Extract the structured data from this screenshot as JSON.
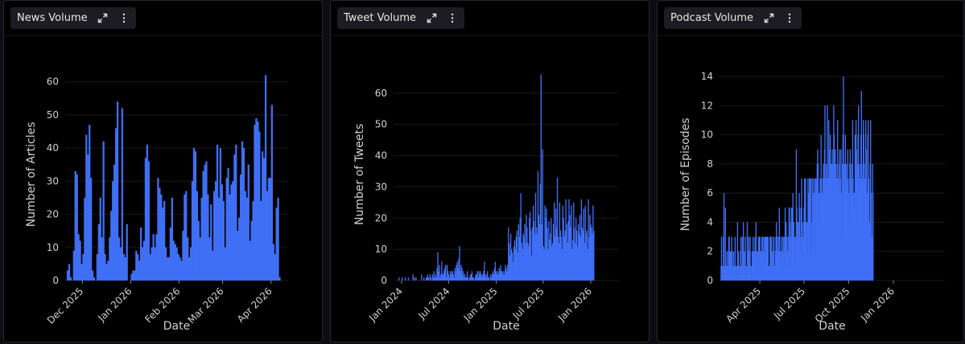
{
  "panels": [
    {
      "title": "News Volume",
      "expand_icon": "expand-icon",
      "menu_icon": "kebab-menu-icon"
    },
    {
      "title": "Tweet Volume",
      "expand_icon": "expand-icon",
      "menu_icon": "kebab-menu-icon"
    },
    {
      "title": "Podcast Volume",
      "expand_icon": "expand-icon",
      "menu_icon": "kebab-menu-icon"
    }
  ],
  "colors": {
    "bar": "#3f6ff5",
    "background": "#000000",
    "grid": "#1a1a1f",
    "text": "#d0d0d0"
  },
  "chart_data": [
    {
      "type": "bar",
      "xlabel": "Date",
      "ylabel": "Number of Articles",
      "xlim": [
        "2025-11-20",
        "2026-04-12"
      ],
      "ylim": [
        0,
        66
      ],
      "yticks": [
        0,
        10,
        20,
        30,
        40,
        50,
        60
      ],
      "xticks": [
        {
          "date": "2025-12-01",
          "label": "Dec 2025"
        },
        {
          "date": "2026-01-01",
          "label": "Jan 2026"
        },
        {
          "date": "2026-02-01",
          "label": "Feb 2026"
        },
        {
          "date": "2026-03-01",
          "label": "Mar 2026"
        },
        {
          "date": "2026-04-01",
          "label": "Apr 2026"
        }
      ],
      "x_start": "2025-11-21",
      "bin_days": 1,
      "values": [
        3,
        5,
        1,
        0,
        9,
        33,
        32,
        14,
        12,
        5,
        8,
        25,
        44,
        38,
        47,
        31,
        3,
        1,
        0,
        8,
        17,
        25,
        13,
        42,
        8,
        5,
        6,
        13,
        21,
        30,
        35,
        46,
        54,
        13,
        10,
        52,
        8,
        7,
        17,
        0,
        0,
        2,
        3,
        3,
        9,
        8,
        6,
        16,
        10,
        12,
        37,
        41,
        36,
        8,
        10,
        14,
        10,
        14,
        31,
        28,
        26,
        22,
        24,
        10,
        7,
        7,
        16,
        25,
        12,
        11,
        10,
        8,
        7,
        6,
        15,
        26,
        27,
        13,
        7,
        10,
        30,
        40,
        39,
        27,
        18,
        13,
        25,
        33,
        35,
        36,
        26,
        13,
        23,
        9,
        27,
        30,
        41,
        25,
        40,
        29,
        24,
        10,
        31,
        34,
        26,
        29,
        30,
        38,
        41,
        15,
        19,
        32,
        42,
        40,
        27,
        25,
        35,
        12,
        18,
        24,
        47,
        49,
        48,
        45,
        24,
        39,
        37,
        62,
        27,
        31,
        31,
        53,
        11,
        8,
        22,
        25,
        1
      ]
    },
    {
      "type": "bar",
      "xlabel": "Date",
      "ylabel": "Number of Tweets",
      "xlim": [
        "2023-12-01",
        "2026-04-20"
      ],
      "ylim": [
        0,
        70
      ],
      "yticks": [
        0,
        10,
        20,
        30,
        40,
        50,
        60
      ],
      "xticks": [
        {
          "date": "2024-01-01",
          "label": "Jan 2024"
        },
        {
          "date": "2024-07-01",
          "label": "Jul 2024"
        },
        {
          "date": "2025-01-01",
          "label": "Jan 2025"
        },
        {
          "date": "2025-07-01",
          "label": "Jul 2025"
        },
        {
          "date": "2026-01-01",
          "label": "Jan 2026"
        }
      ],
      "x_start": "2023-12-20",
      "bin_days": 3,
      "values": [
        1,
        0,
        0,
        0,
        1,
        0,
        0,
        0,
        1,
        0,
        0,
        0,
        1,
        0,
        0,
        0,
        0,
        0,
        2,
        0,
        1,
        0,
        1,
        0,
        0,
        0,
        0,
        0,
        0,
        2,
        0,
        0,
        1,
        0,
        0,
        1,
        1,
        2,
        1,
        0,
        2,
        1,
        0,
        2,
        1,
        3,
        1,
        2,
        1,
        4,
        9,
        3,
        5,
        1,
        2,
        6,
        2,
        2,
        3,
        4,
        5,
        1,
        5,
        3,
        2,
        1,
        3,
        2,
        3,
        3,
        2,
        1,
        4,
        3,
        5,
        6,
        4,
        7,
        11,
        3,
        5,
        4,
        2,
        3,
        1,
        2,
        1,
        1,
        3,
        1,
        0,
        1,
        2,
        2,
        3,
        1,
        1,
        0,
        1,
        2,
        2,
        3,
        1,
        3,
        2,
        3,
        2,
        1,
        2,
        3,
        6,
        2,
        1,
        2,
        3,
        1,
        1,
        0,
        2,
        1,
        2,
        3,
        2,
        4,
        6,
        3,
        2,
        3,
        2,
        4,
        3,
        5,
        3,
        3,
        2,
        3,
        2,
        5,
        4,
        3,
        5,
        17,
        12,
        8,
        15,
        10,
        9,
        6,
        11,
        13,
        10,
        14,
        16,
        9,
        18,
        14,
        20,
        28,
        12,
        10,
        15,
        14,
        18,
        12,
        21,
        17,
        12,
        11,
        20,
        22,
        16,
        8,
        17,
        24,
        19,
        15,
        28,
        17,
        15,
        35,
        21,
        18,
        31,
        66,
        18,
        42,
        11,
        10,
        24,
        20,
        23,
        17,
        10,
        19,
        13,
        15,
        20,
        11,
        12,
        18,
        25,
        14,
        23,
        17,
        33,
        14,
        12,
        25,
        16,
        14,
        10,
        24,
        20,
        14,
        16,
        26,
        18,
        12,
        19,
        26,
        21,
        17,
        24,
        10,
        13,
        25,
        17,
        12,
        20,
        16,
        11,
        18,
        15,
        21,
        14,
        26,
        17,
        16,
        23,
        12,
        24,
        15,
        16,
        10,
        26,
        14,
        21,
        18,
        17,
        15,
        24,
        16
      ]
    },
    {
      "type": "bar",
      "xlabel": "Date",
      "ylabel": "Number of Episodes",
      "xlim": [
        "2025-01-08",
        "2026-04-17"
      ],
      "ylim": [
        0,
        15
      ],
      "yticks": [
        0,
        2,
        4,
        6,
        8,
        10,
        12,
        14
      ],
      "xticks": [
        {
          "date": "2025-04-01",
          "label": "Apr 2025"
        },
        {
          "date": "2025-07-01",
          "label": "Jul 2025"
        },
        {
          "date": "2025-10-01",
          "label": "Oct 2025"
        },
        {
          "date": "2026-01-01",
          "label": "Jan 2026"
        }
      ],
      "x_start": "2025-01-10",
      "bin_days": 1,
      "values": [
        1,
        3,
        1,
        1,
        0,
        3,
        6,
        0,
        1,
        5,
        1,
        1,
        2,
        1,
        1,
        2,
        3,
        3,
        1,
        2,
        1,
        2,
        3,
        2,
        1,
        1,
        2,
        1,
        1,
        3,
        1,
        0,
        1,
        0,
        4,
        1,
        2,
        1,
        0,
        1,
        2,
        3,
        1,
        1,
        3,
        2,
        4,
        1,
        2,
        1,
        3,
        0,
        1,
        1,
        4,
        2,
        1,
        3,
        1,
        2,
        3,
        1,
        0,
        1,
        2,
        2,
        3,
        1,
        2,
        1,
        3,
        2,
        4,
        1,
        2,
        2,
        1,
        3,
        2,
        3,
        3,
        2,
        1,
        2,
        3,
        3,
        3,
        2,
        2,
        3,
        1,
        3,
        3,
        3,
        2,
        3,
        3,
        3,
        0,
        1,
        1,
        3,
        2,
        3,
        3,
        2,
        1,
        2,
        3,
        3,
        1,
        1,
        2,
        3,
        4,
        3,
        3,
        1,
        2,
        3,
        5,
        3,
        2,
        1,
        2,
        3,
        3,
        2,
        2,
        3,
        1,
        3,
        5,
        3,
        4,
        2,
        3,
        2,
        1,
        3,
        5,
        5,
        4,
        1,
        3,
        5,
        5,
        4,
        6,
        3,
        4,
        3,
        1,
        3,
        1,
        9,
        5,
        4,
        3,
        4,
        2,
        6,
        5,
        3,
        2,
        5,
        7,
        4,
        3,
        1,
        4,
        5,
        7,
        6,
        7,
        3,
        4,
        2,
        4,
        7,
        6,
        5,
        7,
        2,
        7,
        7,
        4,
        2,
        7,
        6,
        5,
        7,
        6,
        2,
        7,
        7,
        6,
        7,
        8,
        9,
        8,
        6,
        4,
        6,
        7,
        7,
        10,
        7,
        6,
        5,
        7,
        8,
        7,
        9,
        12,
        6,
        7,
        8,
        6,
        12,
        7,
        7,
        11,
        8,
        9,
        10,
        7,
        8,
        7,
        9,
        8,
        6,
        12,
        10,
        7,
        9,
        8,
        8,
        7,
        6,
        11,
        7,
        6,
        8,
        9,
        6,
        7,
        9,
        6,
        3,
        8,
        10,
        14,
        7,
        8,
        6,
        10,
        6,
        8,
        7,
        6,
        9,
        7,
        6,
        4,
        8,
        9,
        8,
        7,
        6,
        8,
        11,
        7,
        6,
        5,
        6,
        10,
        8,
        11,
        9,
        7,
        8,
        10,
        12,
        6,
        8,
        7,
        5,
        10,
        13,
        8,
        7,
        4,
        11,
        10,
        8,
        6,
        7,
        11,
        9,
        6,
        2,
        10,
        11,
        7,
        4,
        2,
        8,
        11,
        6,
        3,
        2,
        8,
        6
      ]
    }
  ]
}
